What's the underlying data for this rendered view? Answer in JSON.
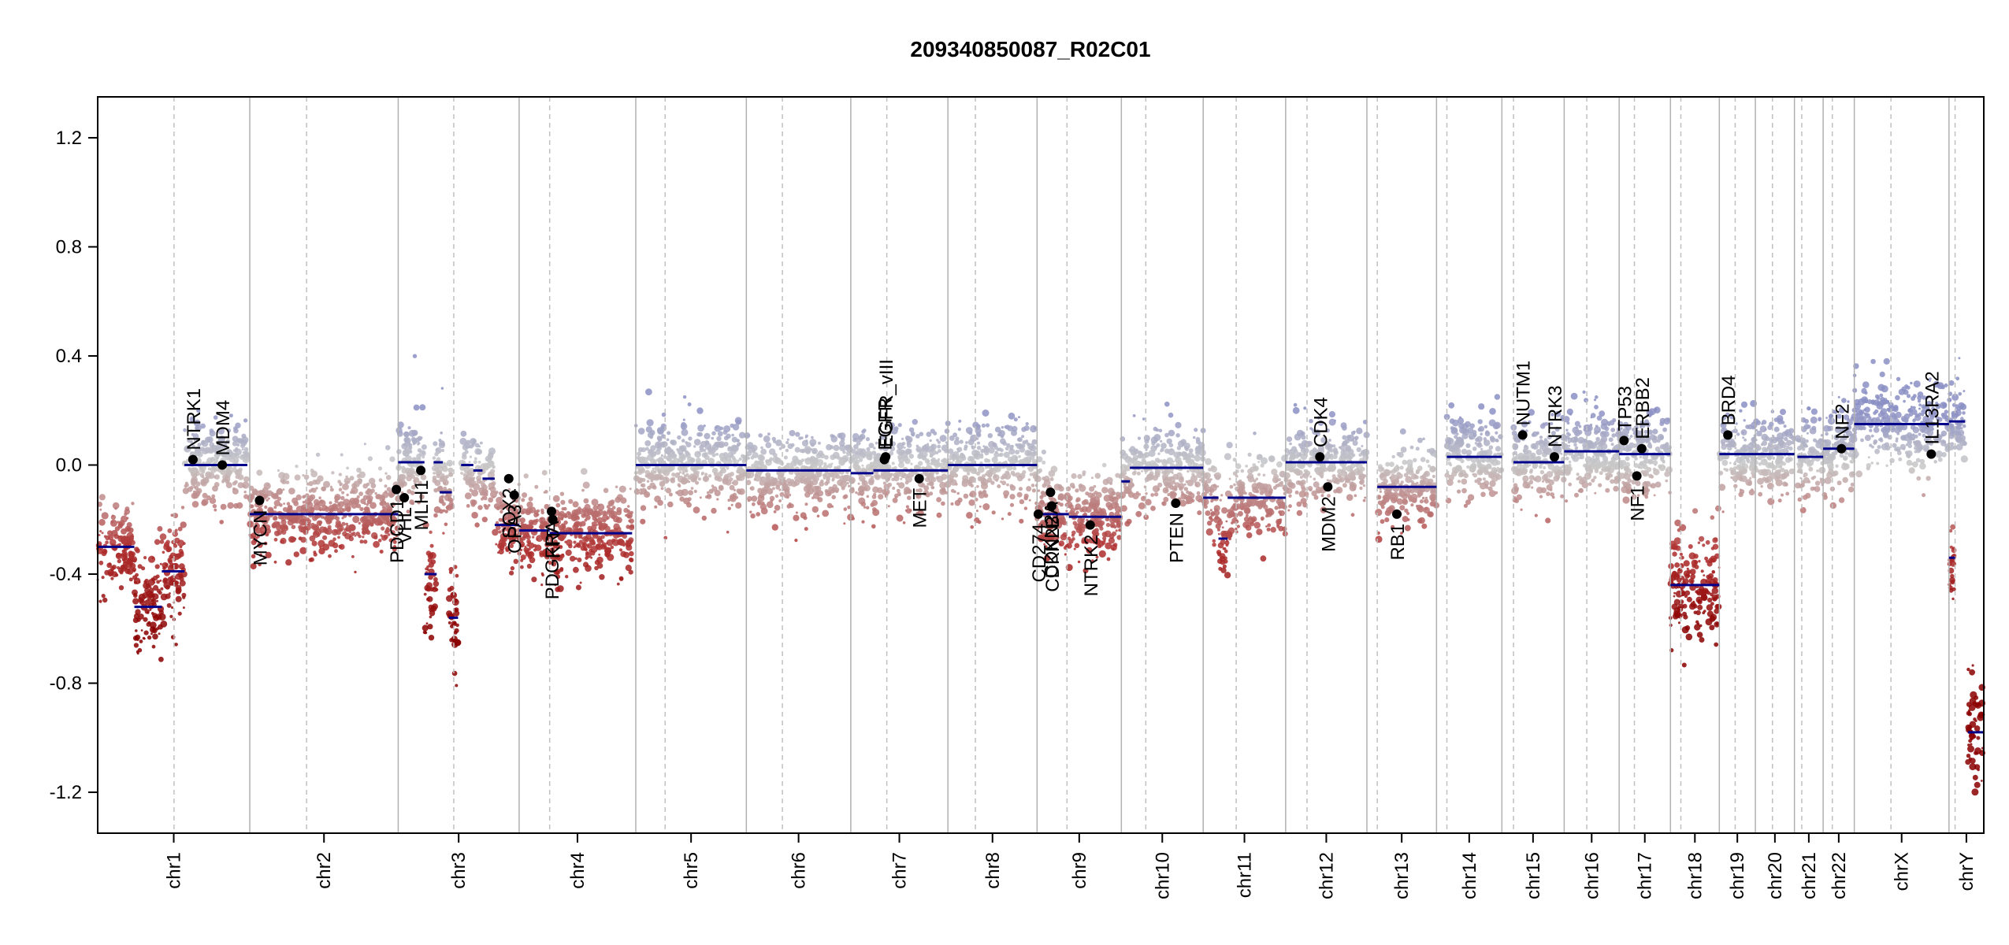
{
  "chart_data": {
    "type": "scatter",
    "title": "209340850087_R02C01",
    "xlabel": "",
    "ylabel": "",
    "ylim": [
      -1.35,
      1.35
    ],
    "yticks": [
      "1.2",
      "0.8",
      "0.4",
      "0.0",
      "-0.4",
      "-0.8",
      "-1.2"
    ],
    "ytick_values": [
      1.2,
      0.8,
      0.4,
      0.0,
      -0.4,
      -0.8,
      -1.2
    ],
    "x_unit": "genome position (Mb, cumulative)",
    "chromosomes": [
      {
        "name": "chr1",
        "start": 0,
        "end": 249,
        "centromere": 125
      },
      {
        "name": "chr2",
        "start": 249,
        "end": 492,
        "centromere": 342
      },
      {
        "name": "chr3",
        "start": 492,
        "end": 690,
        "centromere": 583
      },
      {
        "name": "chr4",
        "start": 690,
        "end": 881,
        "centromere": 740
      },
      {
        "name": "chr5",
        "start": 881,
        "end": 1062,
        "centromere": 929
      },
      {
        "name": "chr6",
        "start": 1062,
        "end": 1233,
        "centromere": 1121
      },
      {
        "name": "chr7",
        "start": 1233,
        "end": 1392,
        "centromere": 1292
      },
      {
        "name": "chr8",
        "start": 1392,
        "end": 1538,
        "centromere": 1437
      },
      {
        "name": "chr9",
        "start": 1538,
        "end": 1676,
        "centromere": 1587
      },
      {
        "name": "chr10",
        "start": 1676,
        "end": 1810,
        "centromere": 1716
      },
      {
        "name": "chr11",
        "start": 1810,
        "end": 1945,
        "centromere": 1864
      },
      {
        "name": "chr12",
        "start": 1945,
        "end": 2078,
        "centromere": 1980
      },
      {
        "name": "chr13",
        "start": 2078,
        "end": 2192,
        "centromere": 2095
      },
      {
        "name": "chr14",
        "start": 2192,
        "end": 2299,
        "centromere": 2209
      },
      {
        "name": "chr15",
        "start": 2299,
        "end": 2401,
        "centromere": 2318
      },
      {
        "name": "chr16",
        "start": 2401,
        "end": 2491,
        "centromere": 2438
      },
      {
        "name": "chr17",
        "start": 2491,
        "end": 2575,
        "centromere": 2516
      },
      {
        "name": "chr18",
        "start": 2575,
        "end": 2655,
        "centromere": 2592
      },
      {
        "name": "chr19",
        "start": 2655,
        "end": 2714,
        "centromere": 2681
      },
      {
        "name": "chr20",
        "start": 2714,
        "end": 2778,
        "centromere": 2742
      },
      {
        "name": "chr21",
        "start": 2778,
        "end": 2825,
        "centromere": 2790
      },
      {
        "name": "chr22",
        "start": 2825,
        "end": 2876,
        "centromere": 2840
      },
      {
        "name": "chrX",
        "start": 2876,
        "end": 3031,
        "centromere": 2936
      },
      {
        "name": "chrY",
        "start": 3031,
        "end": 3088,
        "centromere": 3041
      }
    ],
    "segments": [
      {
        "x0": 0,
        "x1": 60,
        "y": -0.3
      },
      {
        "x0": 60,
        "x1": 105,
        "y": -0.52
      },
      {
        "x0": 105,
        "x1": 142,
        "y": -0.39
      },
      {
        "x0": 142,
        "x1": 245,
        "y": 0.0
      },
      {
        "x0": 249,
        "x1": 492,
        "y": -0.18
      },
      {
        "x0": 492,
        "x1": 535,
        "y": 0.01
      },
      {
        "x0": 535,
        "x1": 555,
        "y": -0.4
      },
      {
        "x0": 550,
        "x1": 565,
        "y": 0.01
      },
      {
        "x0": 560,
        "x1": 580,
        "y": -0.1
      },
      {
        "x0": 575,
        "x1": 590,
        "y": -0.56
      },
      {
        "x0": 595,
        "x1": 615,
        "y": 0.0
      },
      {
        "x0": 615,
        "x1": 630,
        "y": -0.02
      },
      {
        "x0": 630,
        "x1": 650,
        "y": -0.05
      },
      {
        "x0": 650,
        "x1": 690,
        "y": -0.22
      },
      {
        "x0": 690,
        "x1": 740,
        "y": -0.24
      },
      {
        "x0": 740,
        "x1": 875,
        "y": -0.25
      },
      {
        "x0": 881,
        "x1": 1062,
        "y": 0.0
      },
      {
        "x0": 1062,
        "x1": 1233,
        "y": -0.02
      },
      {
        "x0": 1233,
        "x1": 1270,
        "y": -0.03
      },
      {
        "x0": 1270,
        "x1": 1392,
        "y": -0.02
      },
      {
        "x0": 1392,
        "x1": 1538,
        "y": 0.0
      },
      {
        "x0": 1538,
        "x1": 1590,
        "y": -0.18
      },
      {
        "x0": 1590,
        "x1": 1676,
        "y": -0.19
      },
      {
        "x0": 1676,
        "x1": 1690,
        "y": -0.06
      },
      {
        "x0": 1690,
        "x1": 1810,
        "y": -0.01
      },
      {
        "x0": 1810,
        "x1": 1835,
        "y": -0.12
      },
      {
        "x0": 1835,
        "x1": 1850,
        "y": -0.27
      },
      {
        "x0": 1850,
        "x1": 1945,
        "y": -0.12
      },
      {
        "x0": 1945,
        "x1": 2078,
        "y": 0.01
      },
      {
        "x0": 2095,
        "x1": 2192,
        "y": -0.08
      },
      {
        "x0": 2209,
        "x1": 2299,
        "y": 0.03
      },
      {
        "x0": 2318,
        "x1": 2401,
        "y": 0.01
      },
      {
        "x0": 2401,
        "x1": 2491,
        "y": 0.05
      },
      {
        "x0": 2491,
        "x1": 2575,
        "y": 0.04
      },
      {
        "x0": 2575,
        "x1": 2655,
        "y": -0.44
      },
      {
        "x0": 2655,
        "x1": 2714,
        "y": 0.04
      },
      {
        "x0": 2714,
        "x1": 2778,
        "y": 0.04
      },
      {
        "x0": 2783,
        "x1": 2825,
        "y": 0.03
      },
      {
        "x0": 2825,
        "x1": 2876,
        "y": 0.06
      },
      {
        "x0": 2876,
        "x1": 3031,
        "y": 0.15
      },
      {
        "x0": 3031,
        "x1": 3057,
        "y": 0.16
      },
      {
        "x0": 3031,
        "x1": 3041,
        "y": -0.34
      },
      {
        "x0": 3062,
        "x1": 3088,
        "y": -0.98
      }
    ],
    "genes": [
      {
        "name": "NTRK1",
        "x": 156,
        "y": 0.02,
        "label_side": "up"
      },
      {
        "name": "MDM4",
        "x": 204,
        "y": 0.0,
        "label_side": "up"
      },
      {
        "name": "MYCN",
        "x": 265,
        "y": -0.13,
        "label_side": "down"
      },
      {
        "name": "PDGFRA",
        "x": 743,
        "y": -0.17,
        "label_side": "down"
      },
      {
        "name": "KIT",
        "x": 745,
        "y": -0.2,
        "label_side": "down"
      },
      {
        "name": "PDCD1",
        "x": 489,
        "y": -0.09,
        "label_side": "down"
      },
      {
        "name": "VHL",
        "x": 502,
        "y": -0.12,
        "label_side": "down"
      },
      {
        "name": "MLH1",
        "x": 529,
        "y": -0.02,
        "label_side": "down"
      },
      {
        "name": "SOX2",
        "x": 673,
        "y": -0.05,
        "label_side": "down"
      },
      {
        "name": "OPA3",
        "x": 682,
        "y": -0.11,
        "label_side": "down"
      },
      {
        "name": "EGFR",
        "x": 1288,
        "y": 0.02,
        "label_side": "up"
      },
      {
        "name": "EGFR_vIII",
        "x": 1290,
        "y": 0.03,
        "label_side": "up"
      },
      {
        "name": "MET",
        "x": 1345,
        "y": -0.05,
        "label_side": "down"
      },
      {
        "name": "CD274",
        "x": 1540,
        "y": -0.18,
        "label_side": "down"
      },
      {
        "name": "CDKN2A",
        "x": 1560,
        "y": -0.1,
        "label_side": "down"
      },
      {
        "name": "CDKN2B",
        "x": 1562,
        "y": -0.15,
        "label_side": "down"
      },
      {
        "name": "NTRK2",
        "x": 1625,
        "y": -0.22,
        "label_side": "down"
      },
      {
        "name": "PTEN",
        "x": 1765,
        "y": -0.14,
        "label_side": "down"
      },
      {
        "name": "CDK4",
        "x": 2001,
        "y": 0.03,
        "label_side": "up"
      },
      {
        "name": "MDM2",
        "x": 2014,
        "y": -0.08,
        "label_side": "down"
      },
      {
        "name": "RB1",
        "x": 2127,
        "y": -0.18,
        "label_side": "down"
      },
      {
        "name": "NUTM1",
        "x": 2333,
        "y": 0.11,
        "label_side": "up"
      },
      {
        "name": "NTRK3",
        "x": 2385,
        "y": 0.03,
        "label_side": "up"
      },
      {
        "name": "TP53",
        "x": 2499,
        "y": 0.09,
        "label_side": "up"
      },
      {
        "name": "NF1",
        "x": 2520,
        "y": -0.04,
        "label_side": "down"
      },
      {
        "name": "ERBB2",
        "x": 2528,
        "y": 0.06,
        "label_side": "up"
      },
      {
        "name": "BRD4",
        "x": 2669,
        "y": 0.11,
        "label_side": "up"
      },
      {
        "name": "NF2",
        "x": 2855,
        "y": 0.06,
        "label_side": "up"
      },
      {
        "name": "IL13RA2",
        "x": 3002,
        "y": 0.04,
        "label_side": "up"
      }
    ],
    "colors": {
      "segment": "#00008b",
      "gain": "#8b8fc4",
      "neutral": "#c8c8c8",
      "loss": "#b03030",
      "deep_loss": "#8b0000",
      "gene_dot": "#000000"
    },
    "grid": false,
    "legend": "none"
  }
}
